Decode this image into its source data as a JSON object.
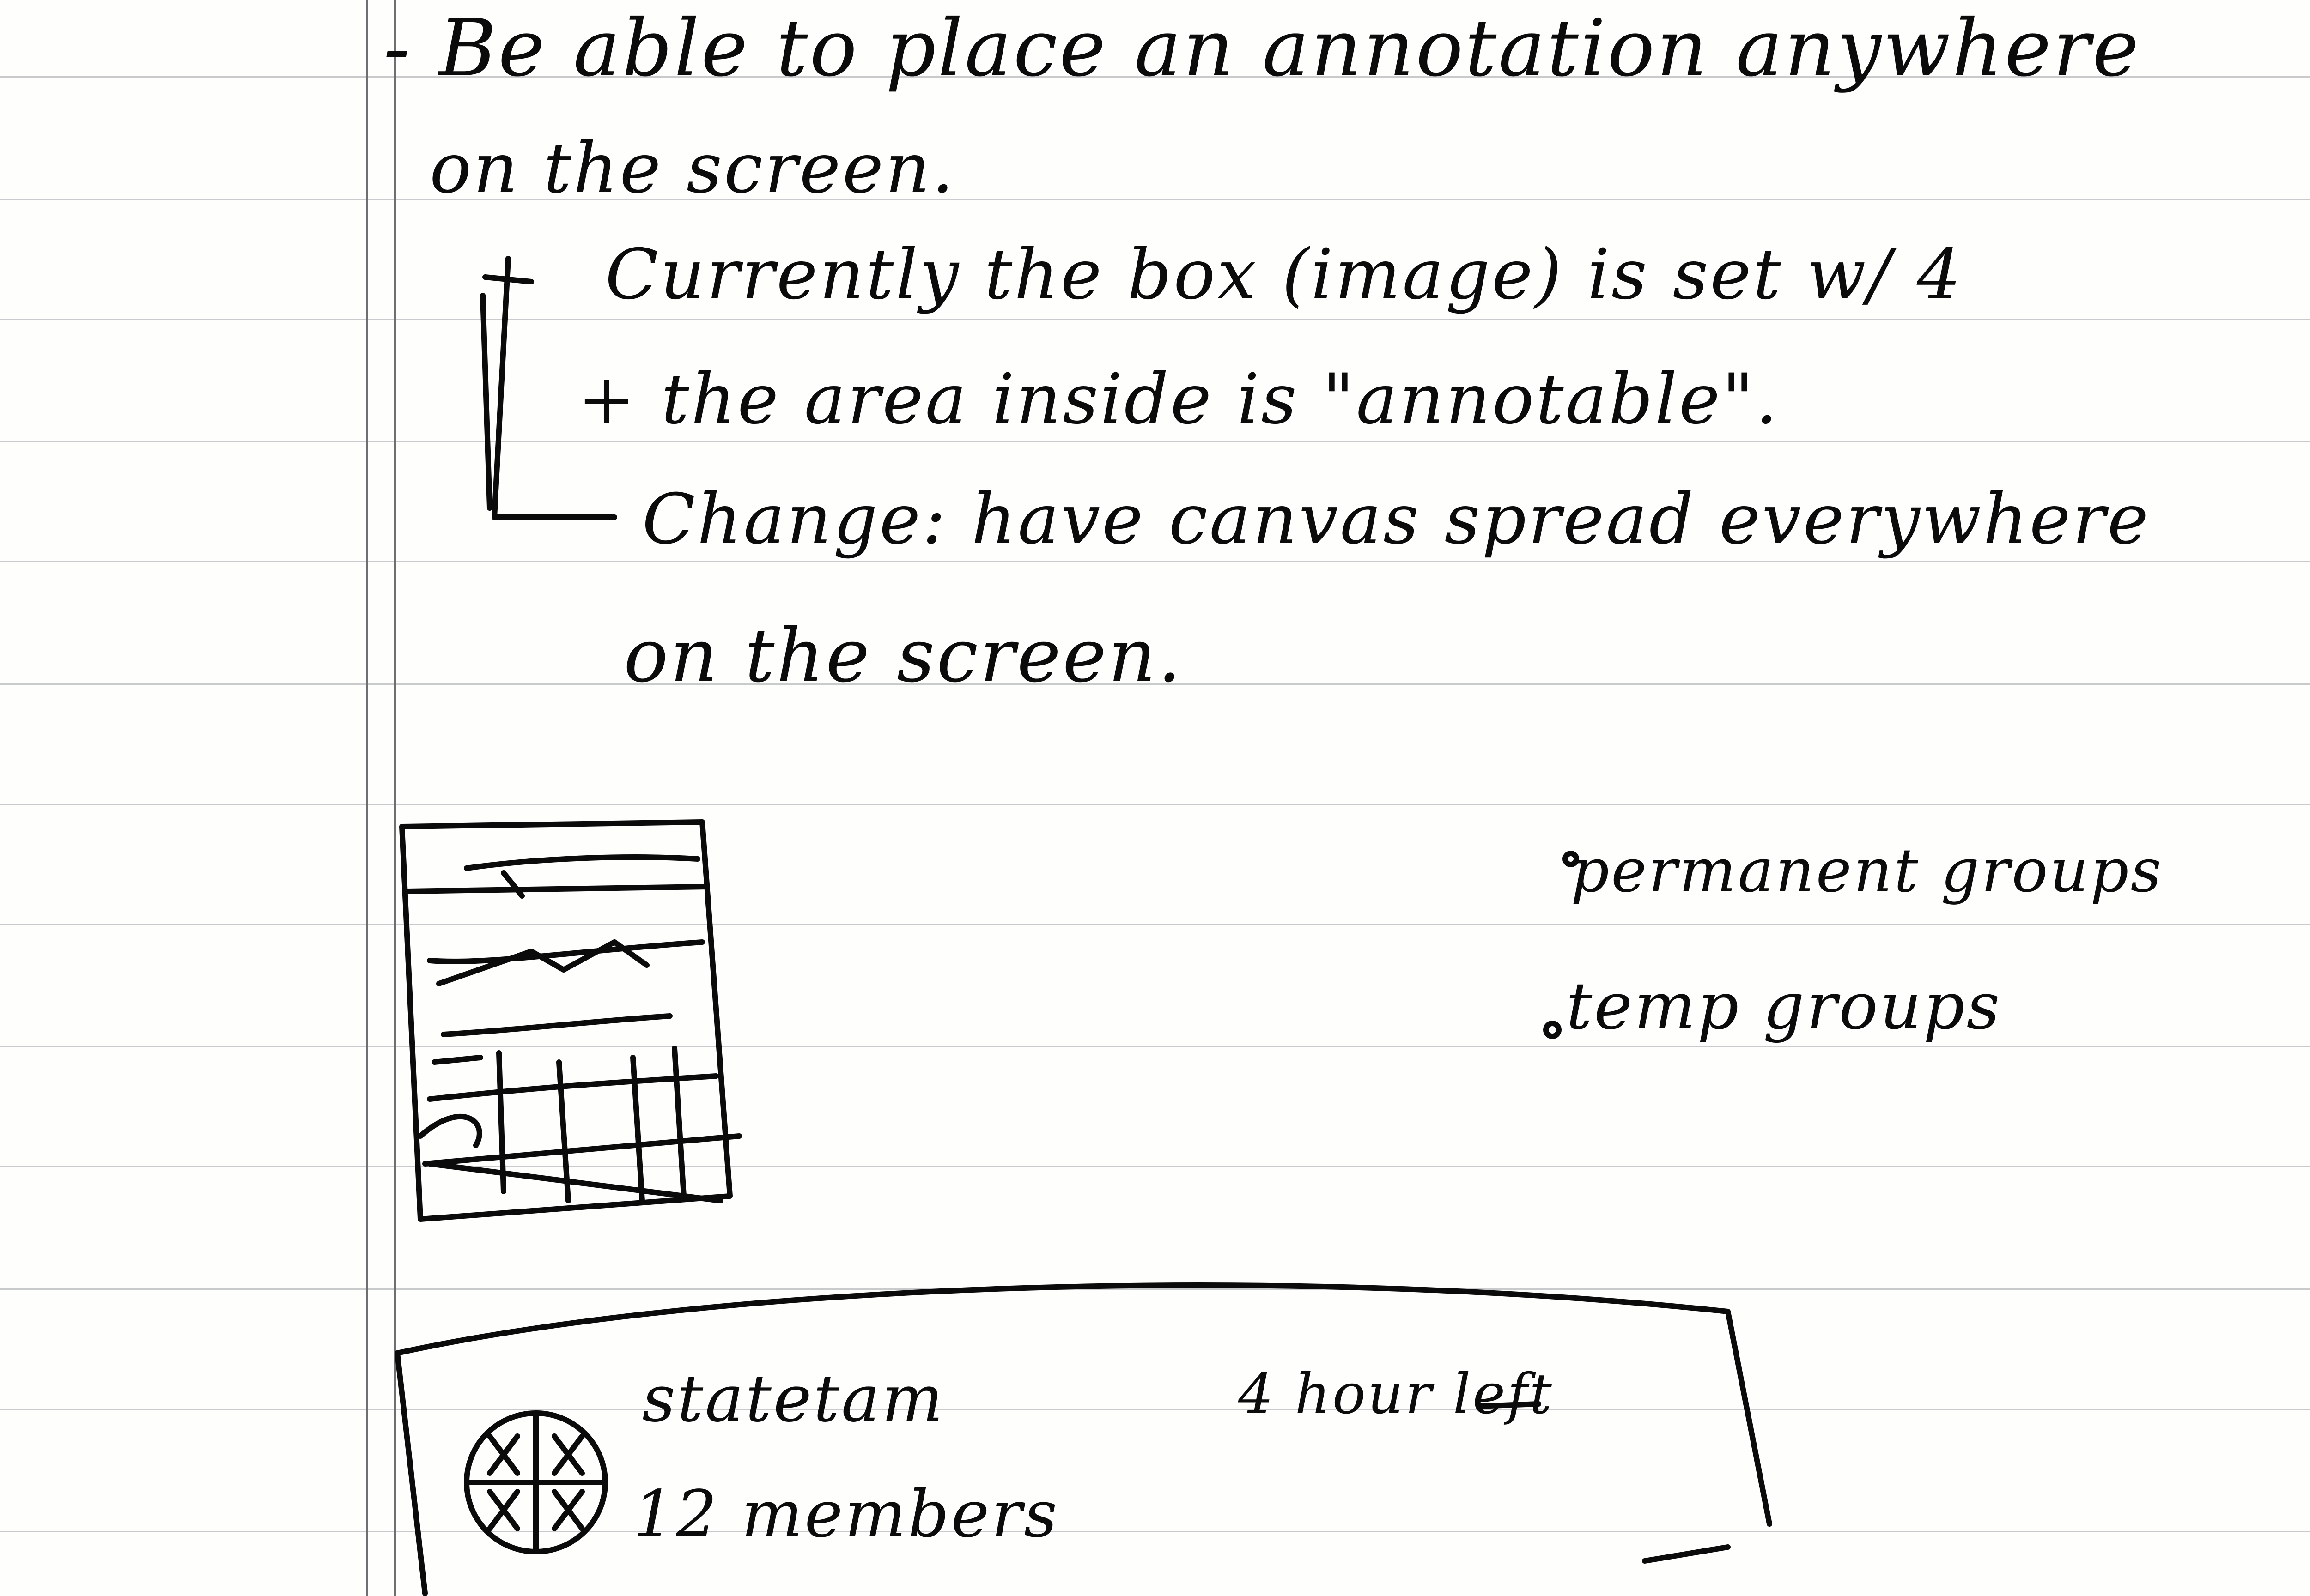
{
  "notes": {
    "line1": "- Be able to place an annotation anywhere",
    "line2": "on the screen.",
    "current_line1": "Currently the box (image) is set w/ 4",
    "current_line2": "+ the area inside is \"annotable\".",
    "change_line1": "Change: have canvas spread everywhere",
    "change_line2": "on the screen."
  },
  "group_types": {
    "item1": "permanent groups",
    "item2": "temp groups"
  },
  "group_card": {
    "name": "statetam",
    "members": "12 members",
    "time_left": "4 hour left"
  },
  "colors": {
    "paper": "#fefefd",
    "rule": "#c9cacb",
    "margin": "#6e6f70",
    "ink": "#0b0b0b"
  }
}
